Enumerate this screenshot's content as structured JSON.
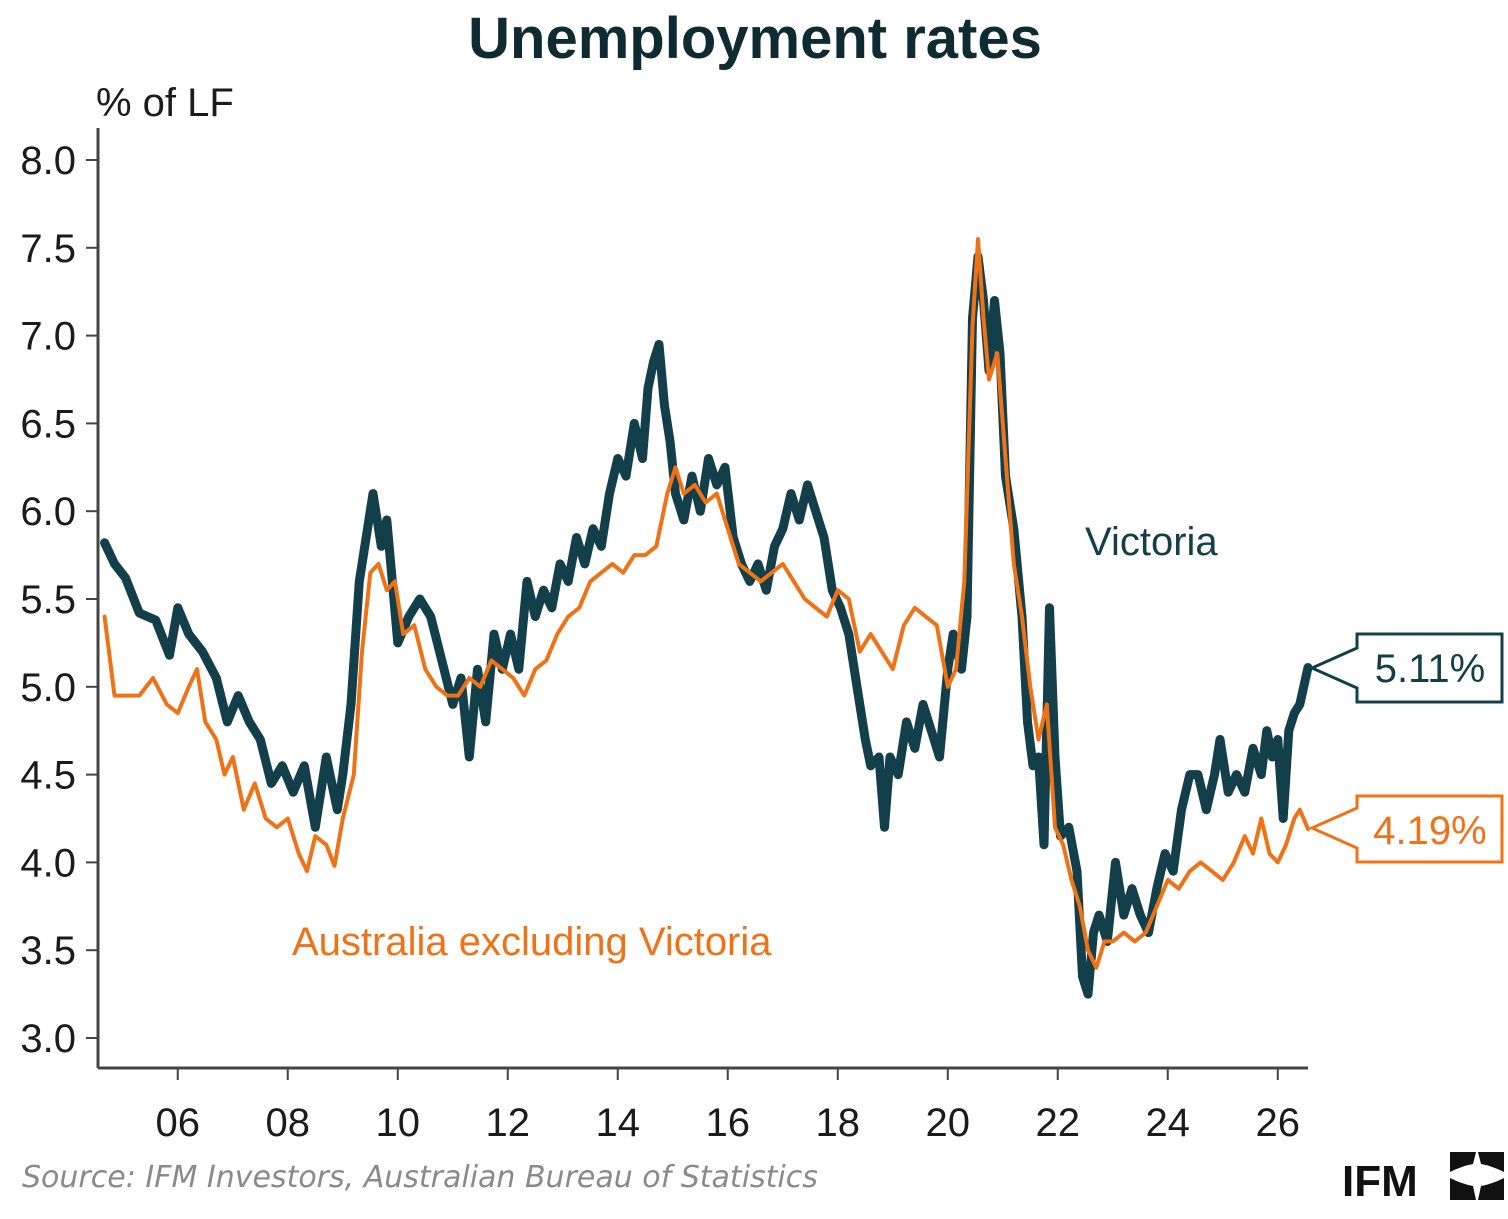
{
  "colors": {
    "victoria": "#123f4a",
    "rest": "#f07216",
    "axis": "#444444",
    "text": "#1b1b1b",
    "source": "#8a8a8a"
  },
  "logo": {
    "text": "IFM",
    "icon": "ifm-logo-icon"
  },
  "source": "Source: IFM Investors, Australian Bureau of Statistics",
  "chart_data": {
    "type": "line",
    "title": "Unemployment rates",
    "ylabel": "% of LF",
    "xlabel": "",
    "ylim": [
      3.0,
      8.0
    ],
    "xlim": [
      2004.55,
      2026.55
    ],
    "y_ticks": [
      "3.0",
      "3.5",
      "4.0",
      "4.5",
      "5.0",
      "5.5",
      "6.0",
      "6.5",
      "7.0",
      "7.5",
      "8.0"
    ],
    "x_ticks": [
      {
        "value": 2006,
        "label": "06"
      },
      {
        "value": 2008,
        "label": "08"
      },
      {
        "value": 2010,
        "label": "10"
      },
      {
        "value": 2012,
        "label": "12"
      },
      {
        "value": 2014,
        "label": "14"
      },
      {
        "value": 2016,
        "label": "16"
      },
      {
        "value": 2018,
        "label": "18"
      },
      {
        "value": 2020,
        "label": "20"
      },
      {
        "value": 2022,
        "label": "22"
      },
      {
        "value": 2024,
        "label": "24"
      },
      {
        "value": 2026,
        "label": "26"
      }
    ],
    "grid": false,
    "series": [
      {
        "name": "Victoria",
        "color": "#123f4a",
        "end_label": "5.11%",
        "points": [
          [
            2004.67,
            5.82
          ],
          [
            2004.85,
            5.7
          ],
          [
            2005.05,
            5.62
          ],
          [
            2005.3,
            5.42
          ],
          [
            2005.6,
            5.38
          ],
          [
            2005.85,
            5.18
          ],
          [
            2006.0,
            5.45
          ],
          [
            2006.2,
            5.3
          ],
          [
            2006.45,
            5.2
          ],
          [
            2006.7,
            5.05
          ],
          [
            2006.9,
            4.8
          ],
          [
            2007.1,
            4.95
          ],
          [
            2007.3,
            4.8
          ],
          [
            2007.5,
            4.7
          ],
          [
            2007.7,
            4.45
          ],
          [
            2007.9,
            4.55
          ],
          [
            2008.1,
            4.4
          ],
          [
            2008.3,
            4.55
          ],
          [
            2008.5,
            4.2
          ],
          [
            2008.7,
            4.6
          ],
          [
            2008.9,
            4.3
          ],
          [
            2009.0,
            4.5
          ],
          [
            2009.15,
            4.9
          ],
          [
            2009.3,
            5.6
          ],
          [
            2009.45,
            5.9
          ],
          [
            2009.55,
            6.1
          ],
          [
            2009.7,
            5.8
          ],
          [
            2009.8,
            5.95
          ],
          [
            2009.9,
            5.6
          ],
          [
            2010.0,
            5.25
          ],
          [
            2010.2,
            5.4
          ],
          [
            2010.4,
            5.5
          ],
          [
            2010.6,
            5.4
          ],
          [
            2010.8,
            5.15
          ],
          [
            2011.0,
            4.9
          ],
          [
            2011.15,
            5.05
          ],
          [
            2011.3,
            4.6
          ],
          [
            2011.45,
            5.1
          ],
          [
            2011.6,
            4.8
          ],
          [
            2011.75,
            5.3
          ],
          [
            2011.9,
            5.1
          ],
          [
            2012.05,
            5.3
          ],
          [
            2012.2,
            5.1
          ],
          [
            2012.35,
            5.6
          ],
          [
            2012.5,
            5.4
          ],
          [
            2012.65,
            5.55
          ],
          [
            2012.8,
            5.45
          ],
          [
            2012.95,
            5.7
          ],
          [
            2013.1,
            5.6
          ],
          [
            2013.25,
            5.85
          ],
          [
            2013.4,
            5.7
          ],
          [
            2013.55,
            5.9
          ],
          [
            2013.7,
            5.8
          ],
          [
            2013.85,
            6.1
          ],
          [
            2014.0,
            6.3
          ],
          [
            2014.15,
            6.2
          ],
          [
            2014.3,
            6.5
          ],
          [
            2014.45,
            6.3
          ],
          [
            2014.55,
            6.7
          ],
          [
            2014.65,
            6.85
          ],
          [
            2014.75,
            6.95
          ],
          [
            2014.85,
            6.6
          ],
          [
            2014.95,
            6.4
          ],
          [
            2015.05,
            6.1
          ],
          [
            2015.2,
            5.95
          ],
          [
            2015.35,
            6.2
          ],
          [
            2015.5,
            6.0
          ],
          [
            2015.65,
            6.3
          ],
          [
            2015.8,
            6.15
          ],
          [
            2015.95,
            6.25
          ],
          [
            2016.1,
            5.85
          ],
          [
            2016.25,
            5.7
          ],
          [
            2016.4,
            5.6
          ],
          [
            2016.55,
            5.7
          ],
          [
            2016.7,
            5.55
          ],
          [
            2016.85,
            5.8
          ],
          [
            2017.0,
            5.9
          ],
          [
            2017.15,
            6.1
          ],
          [
            2017.3,
            5.95
          ],
          [
            2017.45,
            6.15
          ],
          [
            2017.6,
            6.0
          ],
          [
            2017.75,
            5.85
          ],
          [
            2017.9,
            5.55
          ],
          [
            2018.05,
            5.45
          ],
          [
            2018.2,
            5.3
          ],
          [
            2018.35,
            5.0
          ],
          [
            2018.5,
            4.7
          ],
          [
            2018.6,
            4.55
          ],
          [
            2018.75,
            4.6
          ],
          [
            2018.85,
            4.2
          ],
          [
            2018.95,
            4.6
          ],
          [
            2019.1,
            4.5
          ],
          [
            2019.25,
            4.8
          ],
          [
            2019.4,
            4.65
          ],
          [
            2019.55,
            4.9
          ],
          [
            2019.7,
            4.75
          ],
          [
            2019.85,
            4.6
          ],
          [
            2020.0,
            5.1
          ],
          [
            2020.1,
            5.3
          ],
          [
            2020.25,
            5.1
          ],
          [
            2020.35,
            5.4
          ],
          [
            2020.45,
            7.1
          ],
          [
            2020.55,
            7.45
          ],
          [
            2020.65,
            7.2
          ],
          [
            2020.75,
            6.8
          ],
          [
            2020.85,
            7.2
          ],
          [
            2020.95,
            6.9
          ],
          [
            2021.05,
            6.2
          ],
          [
            2021.2,
            5.9
          ],
          [
            2021.35,
            5.4
          ],
          [
            2021.45,
            4.8
          ],
          [
            2021.55,
            4.55
          ],
          [
            2021.65,
            4.6
          ],
          [
            2021.75,
            4.1
          ],
          [
            2021.85,
            5.45
          ],
          [
            2021.95,
            4.6
          ],
          [
            2022.05,
            4.15
          ],
          [
            2022.2,
            4.2
          ],
          [
            2022.35,
            3.95
          ],
          [
            2022.45,
            3.35
          ],
          [
            2022.55,
            3.25
          ],
          [
            2022.65,
            3.6
          ],
          [
            2022.75,
            3.7
          ],
          [
            2022.9,
            3.55
          ],
          [
            2023.05,
            4.0
          ],
          [
            2023.2,
            3.7
          ],
          [
            2023.35,
            3.85
          ],
          [
            2023.5,
            3.7
          ],
          [
            2023.65,
            3.6
          ],
          [
            2023.8,
            3.85
          ],
          [
            2023.95,
            4.05
          ],
          [
            2024.1,
            3.95
          ],
          [
            2024.25,
            4.3
          ],
          [
            2024.4,
            4.5
          ],
          [
            2024.55,
            4.5
          ],
          [
            2024.7,
            4.3
          ],
          [
            2024.85,
            4.5
          ],
          [
            2024.95,
            4.7
          ],
          [
            2025.1,
            4.4
          ],
          [
            2025.25,
            4.5
          ],
          [
            2025.4,
            4.4
          ],
          [
            2025.55,
            4.65
          ],
          [
            2025.7,
            4.5
          ],
          [
            2025.8,
            4.75
          ],
          [
            2025.9,
            4.6
          ],
          [
            2026.0,
            4.7
          ],
          [
            2026.1,
            4.25
          ],
          [
            2026.2,
            4.75
          ],
          [
            2026.3,
            4.85
          ],
          [
            2026.4,
            4.9
          ],
          [
            2026.55,
            5.11
          ]
        ]
      },
      {
        "name": "Australia excluding Victoria",
        "color": "#f07216",
        "end_label": "4.19%",
        "points": [
          [
            2004.67,
            5.4
          ],
          [
            2004.85,
            4.95
          ],
          [
            2005.05,
            4.95
          ],
          [
            2005.3,
            4.95
          ],
          [
            2005.55,
            5.05
          ],
          [
            2005.8,
            4.9
          ],
          [
            2006.0,
            4.85
          ],
          [
            2006.2,
            5.0
          ],
          [
            2006.35,
            5.1
          ],
          [
            2006.5,
            4.8
          ],
          [
            2006.7,
            4.7
          ],
          [
            2006.85,
            4.5
          ],
          [
            2007.0,
            4.6
          ],
          [
            2007.2,
            4.3
          ],
          [
            2007.4,
            4.45
          ],
          [
            2007.6,
            4.25
          ],
          [
            2007.8,
            4.2
          ],
          [
            2008.0,
            4.25
          ],
          [
            2008.2,
            4.05
          ],
          [
            2008.35,
            3.95
          ],
          [
            2008.5,
            4.15
          ],
          [
            2008.7,
            4.1
          ],
          [
            2008.85,
            3.98
          ],
          [
            2009.0,
            4.25
          ],
          [
            2009.2,
            4.5
          ],
          [
            2009.35,
            5.2
          ],
          [
            2009.5,
            5.65
          ],
          [
            2009.65,
            5.7
          ],
          [
            2009.8,
            5.55
          ],
          [
            2009.95,
            5.6
          ],
          [
            2010.1,
            5.3
          ],
          [
            2010.3,
            5.35
          ],
          [
            2010.5,
            5.1
          ],
          [
            2010.7,
            5.0
          ],
          [
            2010.9,
            4.95
          ],
          [
            2011.1,
            4.95
          ],
          [
            2011.3,
            5.05
          ],
          [
            2011.5,
            5.0
          ],
          [
            2011.7,
            5.15
          ],
          [
            2011.9,
            5.1
          ],
          [
            2012.1,
            5.05
          ],
          [
            2012.3,
            4.95
          ],
          [
            2012.5,
            5.1
          ],
          [
            2012.7,
            5.15
          ],
          [
            2012.9,
            5.3
          ],
          [
            2013.1,
            5.4
          ],
          [
            2013.3,
            5.45
          ],
          [
            2013.5,
            5.6
          ],
          [
            2013.7,
            5.65
          ],
          [
            2013.9,
            5.7
          ],
          [
            2014.1,
            5.65
          ],
          [
            2014.3,
            5.75
          ],
          [
            2014.5,
            5.75
          ],
          [
            2014.7,
            5.8
          ],
          [
            2014.9,
            6.1
          ],
          [
            2015.05,
            6.25
          ],
          [
            2015.2,
            6.1
          ],
          [
            2015.4,
            6.15
          ],
          [
            2015.6,
            6.05
          ],
          [
            2015.8,
            6.1
          ],
          [
            2016.0,
            5.9
          ],
          [
            2016.2,
            5.7
          ],
          [
            2016.4,
            5.65
          ],
          [
            2016.6,
            5.6
          ],
          [
            2016.8,
            5.65
          ],
          [
            2017.0,
            5.7
          ],
          [
            2017.2,
            5.6
          ],
          [
            2017.4,
            5.5
          ],
          [
            2017.6,
            5.45
          ],
          [
            2017.8,
            5.4
          ],
          [
            2018.0,
            5.55
          ],
          [
            2018.2,
            5.5
          ],
          [
            2018.4,
            5.2
          ],
          [
            2018.6,
            5.3
          ],
          [
            2018.8,
            5.2
          ],
          [
            2019.0,
            5.1
          ],
          [
            2019.2,
            5.35
          ],
          [
            2019.4,
            5.45
          ],
          [
            2019.6,
            5.4
          ],
          [
            2019.8,
            5.35
          ],
          [
            2020.0,
            5.0
          ],
          [
            2020.15,
            5.1
          ],
          [
            2020.3,
            5.6
          ],
          [
            2020.45,
            7.05
          ],
          [
            2020.55,
            7.55
          ],
          [
            2020.65,
            7.1
          ],
          [
            2020.75,
            6.75
          ],
          [
            2020.9,
            6.9
          ],
          [
            2021.05,
            6.3
          ],
          [
            2021.2,
            5.7
          ],
          [
            2021.35,
            5.4
          ],
          [
            2021.5,
            5.0
          ],
          [
            2021.65,
            4.7
          ],
          [
            2021.8,
            4.9
          ],
          [
            2021.95,
            4.2
          ],
          [
            2022.1,
            4.1
          ],
          [
            2022.25,
            3.9
          ],
          [
            2022.4,
            3.75
          ],
          [
            2022.55,
            3.5
          ],
          [
            2022.7,
            3.4
          ],
          [
            2022.85,
            3.55
          ],
          [
            2023.0,
            3.55
          ],
          [
            2023.2,
            3.6
          ],
          [
            2023.4,
            3.55
          ],
          [
            2023.6,
            3.6
          ],
          [
            2023.8,
            3.75
          ],
          [
            2024.0,
            3.9
          ],
          [
            2024.2,
            3.85
          ],
          [
            2024.4,
            3.95
          ],
          [
            2024.6,
            4.0
          ],
          [
            2024.8,
            3.95
          ],
          [
            2025.0,
            3.9
          ],
          [
            2025.2,
            4.0
          ],
          [
            2025.4,
            4.15
          ],
          [
            2025.55,
            4.05
          ],
          [
            2025.7,
            4.25
          ],
          [
            2025.85,
            4.05
          ],
          [
            2026.0,
            4.0
          ],
          [
            2026.15,
            4.1
          ],
          [
            2026.3,
            4.25
          ],
          [
            2026.4,
            4.3
          ],
          [
            2026.55,
            4.19
          ]
        ]
      }
    ]
  }
}
